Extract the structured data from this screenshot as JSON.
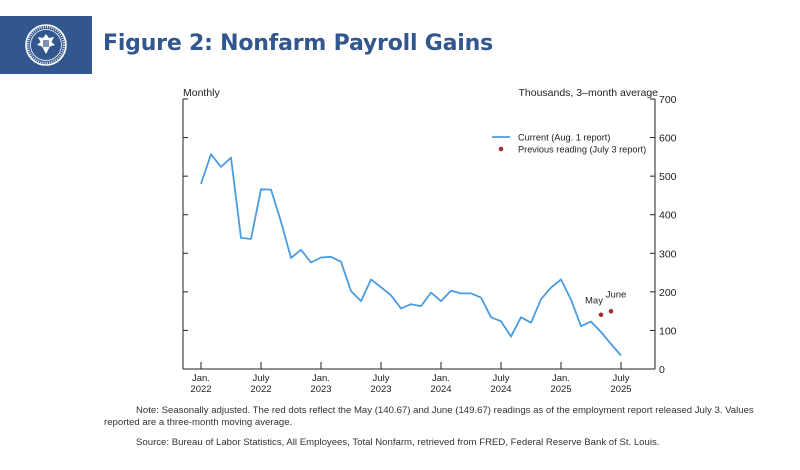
{
  "header": {
    "title": "Figure 2: Nonfarm Payroll Gains",
    "seal_icon": "federal-reserve-seal-icon",
    "brand_color": "#32578e"
  },
  "chart_data": {
    "type": "line",
    "left_label": "Monthly",
    "right_label": "Thousands, 3–month average",
    "ylim": [
      0,
      700
    ],
    "y_ticks": [
      "0",
      "100",
      "200",
      "300",
      "400",
      "500",
      "600",
      "700"
    ],
    "x_ticks": [
      {
        "month": "Jan.",
        "year": "2022",
        "index": 0
      },
      {
        "month": "July",
        "year": "2022",
        "index": 6
      },
      {
        "month": "Jan.",
        "year": "2023",
        "index": 12
      },
      {
        "month": "July",
        "year": "2023",
        "index": 18
      },
      {
        "month": "Jan.",
        "year": "2024",
        "index": 24
      },
      {
        "month": "July",
        "year": "2024",
        "index": 30
      },
      {
        "month": "Jan.",
        "year": "2025",
        "index": 36
      },
      {
        "month": "July",
        "year": "2025",
        "index": 42
      }
    ],
    "x_range": [
      0,
      43
    ],
    "series": [
      {
        "name": "Current (Aug. 1 report)",
        "color": "#4a9be0",
        "values": [
          480,
          557,
          524,
          548,
          340,
          337,
          466,
          465,
          382,
          288,
          309,
          276,
          289,
          291,
          278,
          202,
          176,
          232,
          212,
          191,
          157,
          168,
          163,
          198,
          176,
          203,
          196,
          196,
          185,
          134,
          124,
          84,
          134,
          120,
          181,
          211,
          232,
          180,
          111,
          123,
          96,
          65,
          35
        ]
      },
      {
        "name": "Previous reading (July 3 report)",
        "color": "#a0302f",
        "points": [
          {
            "label": "May",
            "index": 40,
            "value": 140.67
          },
          {
            "label": "June",
            "index": 41,
            "value": 149.67
          }
        ]
      }
    ]
  },
  "footer": {
    "note": "Note: Seasonally adjusted. The red dots reflect the May (140.67) and June (149.67) readings as of the employment report released July 3. Values reported are a three-month moving average.",
    "source": "Source: Bureau of Labor Statistics, All Employees, Total Nonfarm, retrieved from FRED, Federal Reserve Bank of St. Louis."
  }
}
